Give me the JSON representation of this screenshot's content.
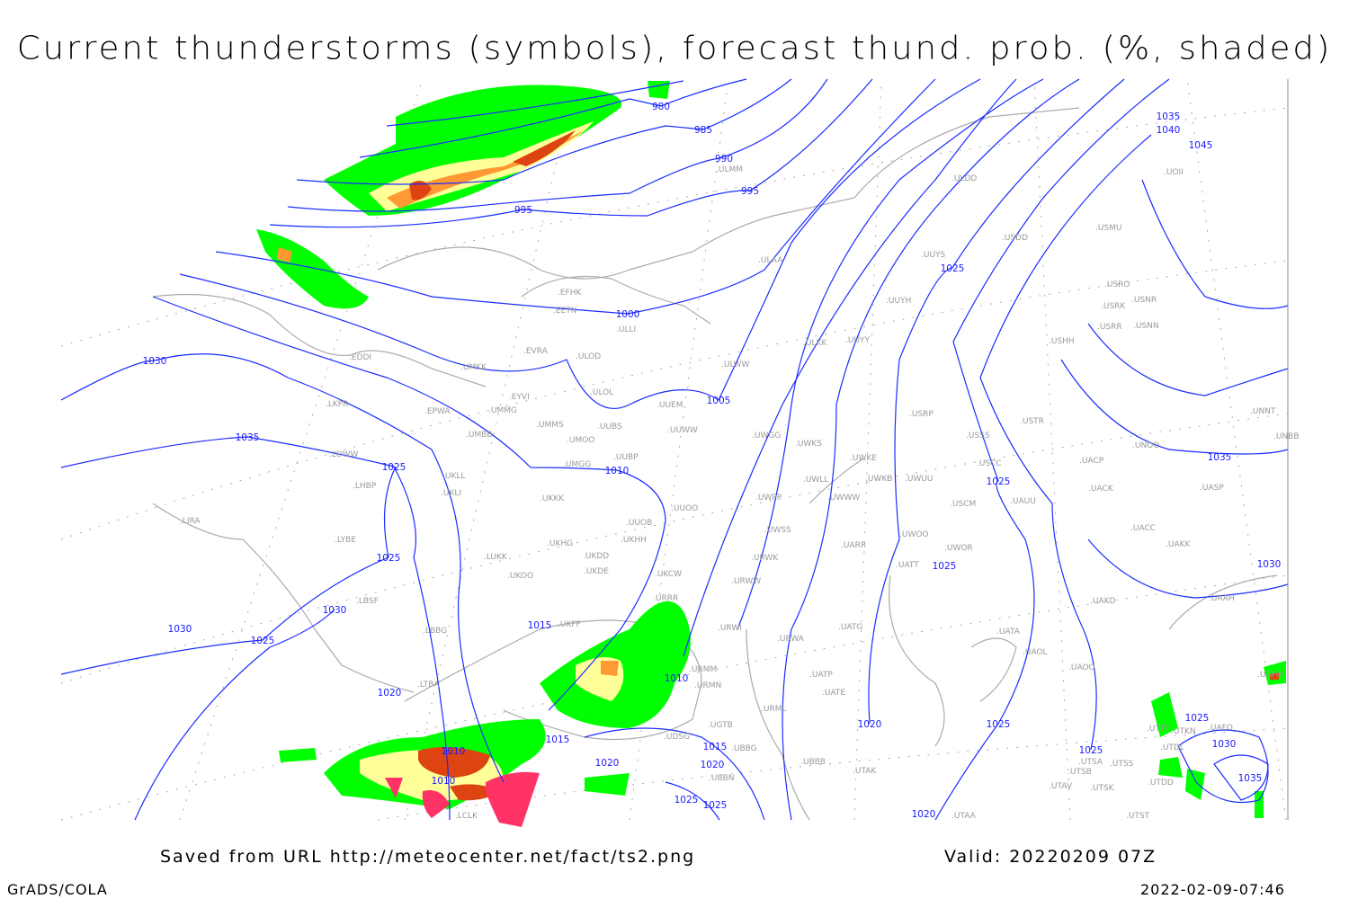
{
  "title": "Current thunderstorms (symbols), forecast thund. prob. (%, shaded)",
  "footer": {
    "source": "Saved from URL http://meteocenter.net/fact/ts2.png",
    "valid": "Valid: 20220209 07Z",
    "software": "GrADS/COLA",
    "timestamp": "2022-02-09-07:46"
  },
  "map": {
    "isobar_color": "#1a2cff",
    "coast_color": "#aaaaaa",
    "shading_colors": {
      "low": "#00ff00",
      "medium": "#ffff99",
      "high": "#ff9933",
      "very_high": "#dd4411",
      "storm_symbols": "#ff3366"
    },
    "contour_labels": [
      "980",
      "985",
      "990",
      "995",
      "995",
      "1000",
      "1005",
      "1010",
      "1015",
      "1010",
      "1015",
      "1020",
      "1010",
      "1010",
      "1025",
      "1025",
      "1020",
      "1015",
      "1020",
      "1020",
      "1025",
      "1025",
      "1025",
      "1025",
      "1025",
      "1030",
      "1035",
      "1025",
      "1025",
      "1030",
      "1030",
      "1025",
      "1020",
      "1035",
      "1030",
      "1035",
      "1040",
      "1045",
      "1025",
      "1030",
      "1035"
    ],
    "stations": [
      "EFHK",
      "EETN",
      "EVRA",
      "ULLI",
      "ULOD",
      "ULOL",
      "ULWW",
      "UUEM",
      "UMKK",
      "EYVI",
      "UMMG",
      "EPWA",
      "LKPR",
      "EDDI",
      "UMMS",
      "UMOO",
      "UUBS",
      "UUWW",
      "UMBB",
      "UWGG",
      "UWKS",
      "UKLL",
      "UKLI",
      "UMGG",
      "UUBP",
      "LOWW",
      "LHBP",
      "UKKK",
      "UUOO",
      "UUOB",
      "UWPP",
      "UWWW",
      "UWLL",
      "UWKB",
      "UWUU",
      "UWKE",
      "USSS",
      "USCC",
      "USCM",
      "UAUU",
      "UACP",
      "UACK",
      "UASP",
      "UNOO",
      "USTR",
      "USRP",
      "USHH",
      "USRR",
      "USNN",
      "USRK",
      "USNR",
      "USRO",
      "USMU",
      "USDD",
      "ULDD",
      "UUYS",
      "UUYH",
      "UUYY",
      "ULKK",
      "ULAA",
      "ULMM",
      "UOII",
      "UNNT",
      "UNBB",
      "UACC",
      "UAKK",
      "UAAH",
      "UAKD",
      "UATA",
      "UAOL",
      "UAOO",
      "UAFM",
      "UTSA",
      "UTSS",
      "UTSB",
      "UTAV",
      "UTSK",
      "UTDD",
      "UTST",
      "UTAA",
      "UTAK",
      "UBBB",
      "UATE",
      "UATP",
      "URML",
      "URWA",
      "UATG",
      "URWI",
      "URMM",
      "URMN",
      "UGTB",
      "UDSG",
      "UBBG",
      "UBBN",
      "UKCW",
      "URRR",
      "UKFF",
      "UKHH",
      "UKDD",
      "UKDE",
      "UKHG",
      "UKOO",
      "LUKK",
      "LYBE",
      "LIRA",
      "LBSF",
      "LBBG",
      "LTBA",
      "LCLK",
      "UARR",
      "UWOO",
      "UWOR",
      "UATT",
      "UWSS",
      "URWW",
      "URWK",
      "UTTT",
      "UTKN",
      "UAFO",
      "UTDL"
    ]
  }
}
